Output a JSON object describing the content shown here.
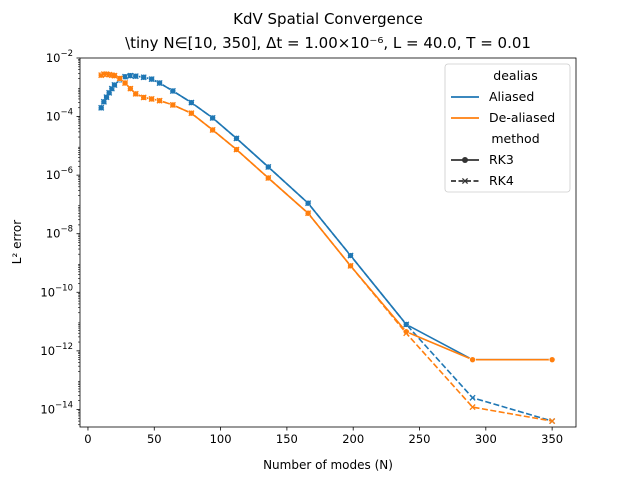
{
  "chart_data": {
    "type": "line",
    "title": "KdV Spatial Convergence",
    "subtitle": "\\tiny N∈[10, 350], Δt = 1.00×10⁻⁶, L = 40.0, T = 0.01",
    "xlabel": "Number of modes (N)",
    "ylabel": "L² error",
    "xlim": [
      -6,
      368
    ],
    "ylim_log10": [
      -14.6,
      -2
    ],
    "y_scale": "log",
    "x_ticks": [
      0,
      50,
      100,
      150,
      200,
      250,
      300,
      350
    ],
    "x_tick_labels": [
      "0",
      "50",
      "100",
      "150",
      "200",
      "250",
      "300",
      "350"
    ],
    "y_ticks_log10": [
      -14,
      -12,
      -10,
      -8,
      -6,
      -4,
      -2
    ],
    "y_tick_labels": [
      {
        "base": "10",
        "exp": "−14"
      },
      {
        "base": "10",
        "exp": "−12"
      },
      {
        "base": "10",
        "exp": "−10"
      },
      {
        "base": "10",
        "exp": "−8"
      },
      {
        "base": "10",
        "exp": "−6"
      },
      {
        "base": "10",
        "exp": "−4"
      },
      {
        "base": "10",
        "exp": "−2"
      }
    ],
    "grid": false,
    "legend": {
      "placement": "top-right",
      "hue_title": "dealias",
      "hue_entries": [
        {
          "name": "Aliased",
          "color": "#1f77b4"
        },
        {
          "name": "De-aliased",
          "color": "#ff7f0e"
        }
      ],
      "style_title": "method",
      "style_entries": [
        {
          "name": "RK3",
          "dash": "solid",
          "marker": "circle"
        },
        {
          "name": "RK4",
          "dash": "dashed",
          "marker": "x"
        }
      ]
    },
    "series": [
      {
        "dealias": "Aliased",
        "method": "RK3",
        "color": "#1f77b4",
        "dash": "solid",
        "marker": "circle",
        "x": [
          10,
          12,
          14,
          16,
          18,
          20,
          24,
          28,
          32,
          36,
          42,
          48,
          54,
          64,
          78,
          94,
          112,
          136,
          166,
          198,
          240,
          290,
          350
        ],
        "y": [
          0.0002,
          0.00032,
          0.00046,
          0.00065,
          0.0009,
          0.0012,
          0.0018,
          0.0023,
          0.0025,
          0.0024,
          0.0022,
          0.0019,
          0.0014,
          0.00075,
          0.0003,
          9e-05,
          1.8e-05,
          1.9e-06,
          1.1e-07,
          1.8e-09,
          8e-12,
          5e-13,
          5e-13
        ]
      },
      {
        "dealias": "Aliased",
        "method": "RK4",
        "color": "#1f77b4",
        "dash": "dashed",
        "marker": "x",
        "x": [
          10,
          12,
          14,
          16,
          18,
          20,
          24,
          28,
          32,
          36,
          42,
          48,
          54,
          64,
          78,
          94,
          112,
          136,
          166,
          198,
          240,
          290,
          350
        ],
        "y": [
          0.0002,
          0.00032,
          0.00046,
          0.00065,
          0.0009,
          0.0012,
          0.0018,
          0.0023,
          0.0025,
          0.0024,
          0.0022,
          0.0019,
          0.0014,
          0.00075,
          0.0003,
          9e-05,
          1.8e-05,
          1.9e-06,
          1.1e-07,
          1.8e-09,
          8e-12,
          2.5e-14,
          4e-15
        ]
      },
      {
        "dealias": "De-aliased",
        "method": "RK3",
        "color": "#ff7f0e",
        "dash": "solid",
        "marker": "circle",
        "x": [
          10,
          12,
          14,
          16,
          18,
          20,
          24,
          28,
          32,
          36,
          42,
          48,
          54,
          64,
          78,
          94,
          112,
          136,
          166,
          198,
          240,
          290,
          350
        ],
        "y": [
          0.0026,
          0.0028,
          0.0028,
          0.0027,
          0.0026,
          0.0025,
          0.002,
          0.0014,
          0.0009,
          0.0006,
          0.00045,
          0.0004,
          0.00035,
          0.00025,
          0.00013,
          3.5e-05,
          7.5e-06,
          8e-07,
          5e-08,
          8e-10,
          4.5e-12,
          5e-13,
          5e-13
        ]
      },
      {
        "dealias": "De-aliased",
        "method": "RK4",
        "color": "#ff7f0e",
        "dash": "dashed",
        "marker": "x",
        "x": [
          10,
          12,
          14,
          16,
          18,
          20,
          24,
          28,
          32,
          36,
          42,
          48,
          54,
          64,
          78,
          94,
          112,
          136,
          166,
          198,
          240,
          290,
          350
        ],
        "y": [
          0.0026,
          0.0028,
          0.0028,
          0.0027,
          0.0026,
          0.0025,
          0.002,
          0.0014,
          0.0009,
          0.0006,
          0.00045,
          0.0004,
          0.00035,
          0.00025,
          0.00013,
          3.5e-05,
          7.5e-06,
          8e-07,
          5e-08,
          8e-10,
          4e-12,
          1.2e-14,
          4e-15
        ]
      }
    ]
  }
}
